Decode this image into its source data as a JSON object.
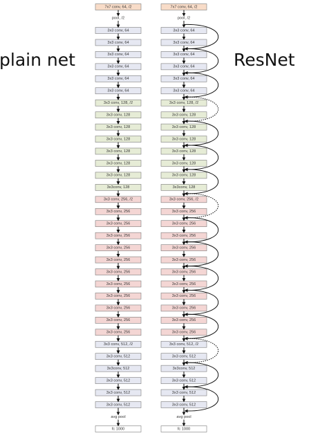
{
  "labels": {
    "plain": "plain net",
    "resnet": "ResNet"
  },
  "colors": {
    "conv7": "#f8dcc8",
    "conv64": "#e6e8f2",
    "conv128": "#e6ecd6",
    "conv256": "#f4d6d4",
    "conv512": "#e6e8f2",
    "fc": "#ffffff",
    "border": "#7a7a7a",
    "arrow": "#111111"
  },
  "pool_label": "pool, /2",
  "avgpool_label": "avg pool",
  "layers": [
    {
      "label": "7x7 conv, 64, /2",
      "group": "conv7"
    },
    {
      "label": "3x3 conv, 64",
      "group": "conv64"
    },
    {
      "label": "3x3 conv, 64",
      "group": "conv64"
    },
    {
      "label": "3x3 conv, 64",
      "group": "conv64"
    },
    {
      "label": "3x3 conv, 64",
      "group": "conv64"
    },
    {
      "label": "3x3 conv, 64",
      "group": "conv64"
    },
    {
      "label": "3x3 conv, 64",
      "group": "conv64"
    },
    {
      "label": "3x3 conv, 128, /2",
      "group": "conv128"
    },
    {
      "label": "3x3 conv, 128",
      "group": "conv128"
    },
    {
      "label": "3x3 conv, 128",
      "group": "conv128"
    },
    {
      "label": "3x3 conv, 128",
      "group": "conv128"
    },
    {
      "label": "3x3 conv, 128",
      "group": "conv128"
    },
    {
      "label": "3x3 conv, 128",
      "group": "conv128"
    },
    {
      "label": "3x3 conv, 128",
      "group": "conv128"
    },
    {
      "label": "3x3conv, 128",
      "group": "conv128"
    },
    {
      "label": "3x3 conv, 256, /2",
      "group": "conv256"
    },
    {
      "label": "3x3 conv, 256",
      "group": "conv256"
    },
    {
      "label": "3x3 conv, 256",
      "group": "conv256"
    },
    {
      "label": "3x3 conv, 256",
      "group": "conv256"
    },
    {
      "label": "3x3 conv, 256",
      "group": "conv256"
    },
    {
      "label": "3x3 conv, 256",
      "group": "conv256"
    },
    {
      "label": "3x3 conv, 256",
      "group": "conv256"
    },
    {
      "label": "3x3 conv, 256",
      "group": "conv256"
    },
    {
      "label": "3x3 conv, 256",
      "group": "conv256"
    },
    {
      "label": "3x3 conv, 256",
      "group": "conv256"
    },
    {
      "label": "3x3 conv, 256",
      "group": "conv256"
    },
    {
      "label": "3x3 conv, 256",
      "group": "conv256"
    },
    {
      "label": "3x3 conv, 512, /2",
      "group": "conv512"
    },
    {
      "label": "3x3 conv, 512",
      "group": "conv512"
    },
    {
      "label": "3x3conv, 512",
      "group": "conv512"
    },
    {
      "label": "3x3 conv, 512",
      "group": "conv512"
    },
    {
      "label": "3x3 conv, 512",
      "group": "conv512"
    },
    {
      "label": "3x3 conv, 512",
      "group": "conv512"
    }
  ],
  "fc_label": "fc 1000",
  "shortcuts": [
    {
      "from": 1,
      "to": 3,
      "type": "identity"
    },
    {
      "from": 3,
      "to": 5,
      "type": "identity"
    },
    {
      "from": 5,
      "to": 7,
      "type": "identity"
    },
    {
      "from": 7,
      "to": 9,
      "type": "projection"
    },
    {
      "from": 9,
      "to": 11,
      "type": "identity"
    },
    {
      "from": 11,
      "to": 13,
      "type": "identity"
    },
    {
      "from": 13,
      "to": 15,
      "type": "identity"
    },
    {
      "from": 15,
      "to": 17,
      "type": "projection"
    },
    {
      "from": 17,
      "to": 19,
      "type": "identity"
    },
    {
      "from": 19,
      "to": 21,
      "type": "identity"
    },
    {
      "from": 21,
      "to": 23,
      "type": "identity"
    },
    {
      "from": 23,
      "to": 25,
      "type": "identity"
    },
    {
      "from": 25,
      "to": 27,
      "type": "identity"
    },
    {
      "from": 27,
      "to": 29,
      "type": "projection"
    },
    {
      "from": 29,
      "to": 31,
      "type": "identity"
    },
    {
      "from": 31,
      "to": 33,
      "type": "identity"
    }
  ]
}
